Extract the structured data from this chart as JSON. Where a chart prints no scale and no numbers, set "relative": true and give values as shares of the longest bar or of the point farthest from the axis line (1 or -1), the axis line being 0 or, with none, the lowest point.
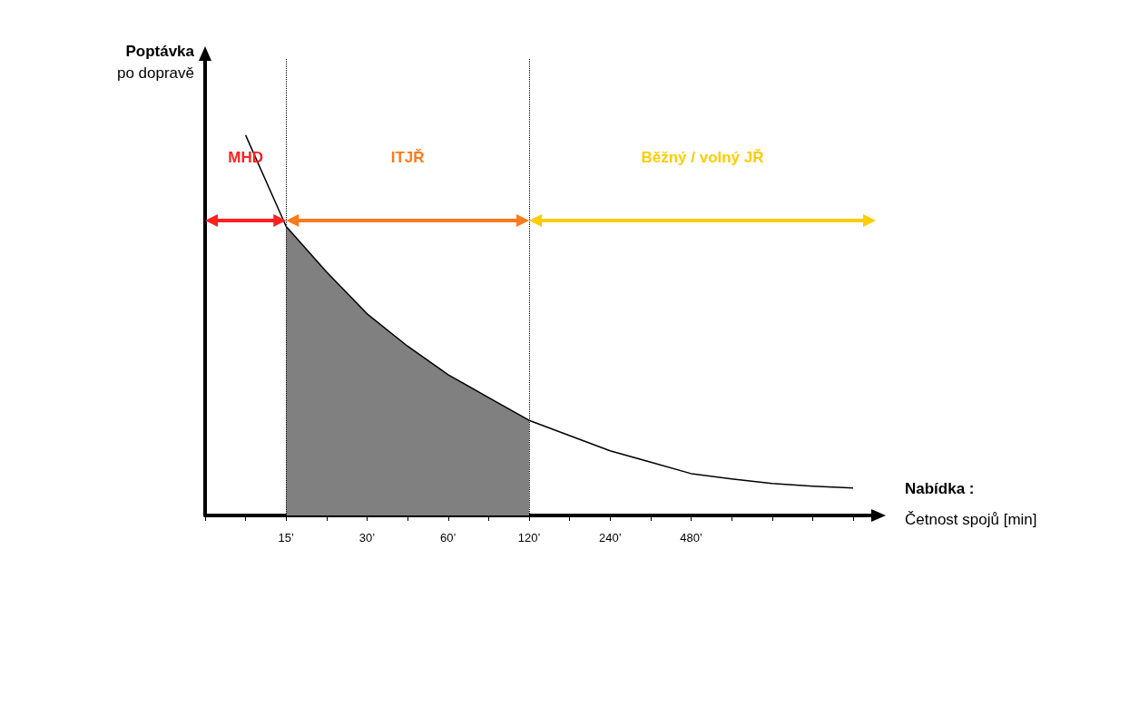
{
  "chart_data": {
    "type": "line",
    "relative": true,
    "ylabel": "Poptávka\npo dopravě",
    "xlabel": "Nabídka :\nČetnost spojů [min]",
    "categories": [
      null,
      null,
      "15’",
      null,
      "30’",
      null,
      "60’",
      null,
      "120’",
      null,
      "240’",
      null,
      "480’",
      null,
      null,
      null,
      null
    ],
    "series": [
      {
        "type": "area",
        "color": "#808080",
        "values": [
          null,
          null,
          0.76,
          0.64,
          0.53,
          0.445,
          0.37,
          0.31,
          0.25,
          null,
          null,
          null,
          null,
          null,
          null,
          null,
          null
        ]
      },
      {
        "color": "#000000",
        "values": [
          null,
          1,
          0.76,
          0.64,
          0.53,
          0.445,
          0.37,
          0.31,
          0.25,
          0.21,
          0.17,
          0.14,
          0.11,
          0.096,
          0.084,
          0.077,
          0.072
        ]
      }
    ],
    "annotations": [
      "MHD",
      "ITJŘ",
      "Běžný / volný JŘ"
    ],
    "ref_lines": [
      {
        "axis": "x",
        "value": "15’",
        "line_style": "dotted",
        "color": "#000000"
      },
      {
        "axis": "x",
        "value": "120’",
        "line_style": "dotted",
        "color": "#000000"
      }
    ],
    "grid": false,
    "marker": "none"
  }
}
